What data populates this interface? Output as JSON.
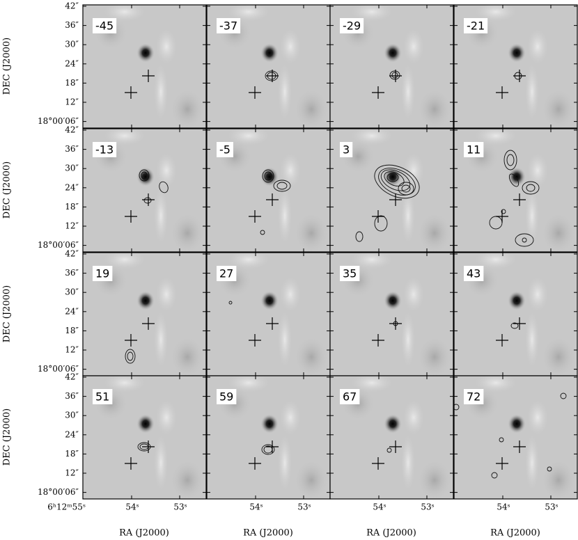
{
  "panels": [
    "-45",
    "-37",
    "-29",
    "-21",
    "-13",
    "-5",
    "3",
    "11",
    "19",
    "27",
    "35",
    "43",
    "51",
    "59",
    "67",
    "72"
  ],
  "y_axis": {
    "title": "DEC (J2000)",
    "ticks": [
      "42″",
      "36″",
      "30″",
      "24″",
      "18″",
      "12″",
      "18°00′06″"
    ]
  },
  "x_axis": {
    "title": "RA (J2000)",
    "ticks": [
      "6ʰ12ᵐ55ˢ",
      "54ˢ",
      "53ˢ"
    ]
  }
}
